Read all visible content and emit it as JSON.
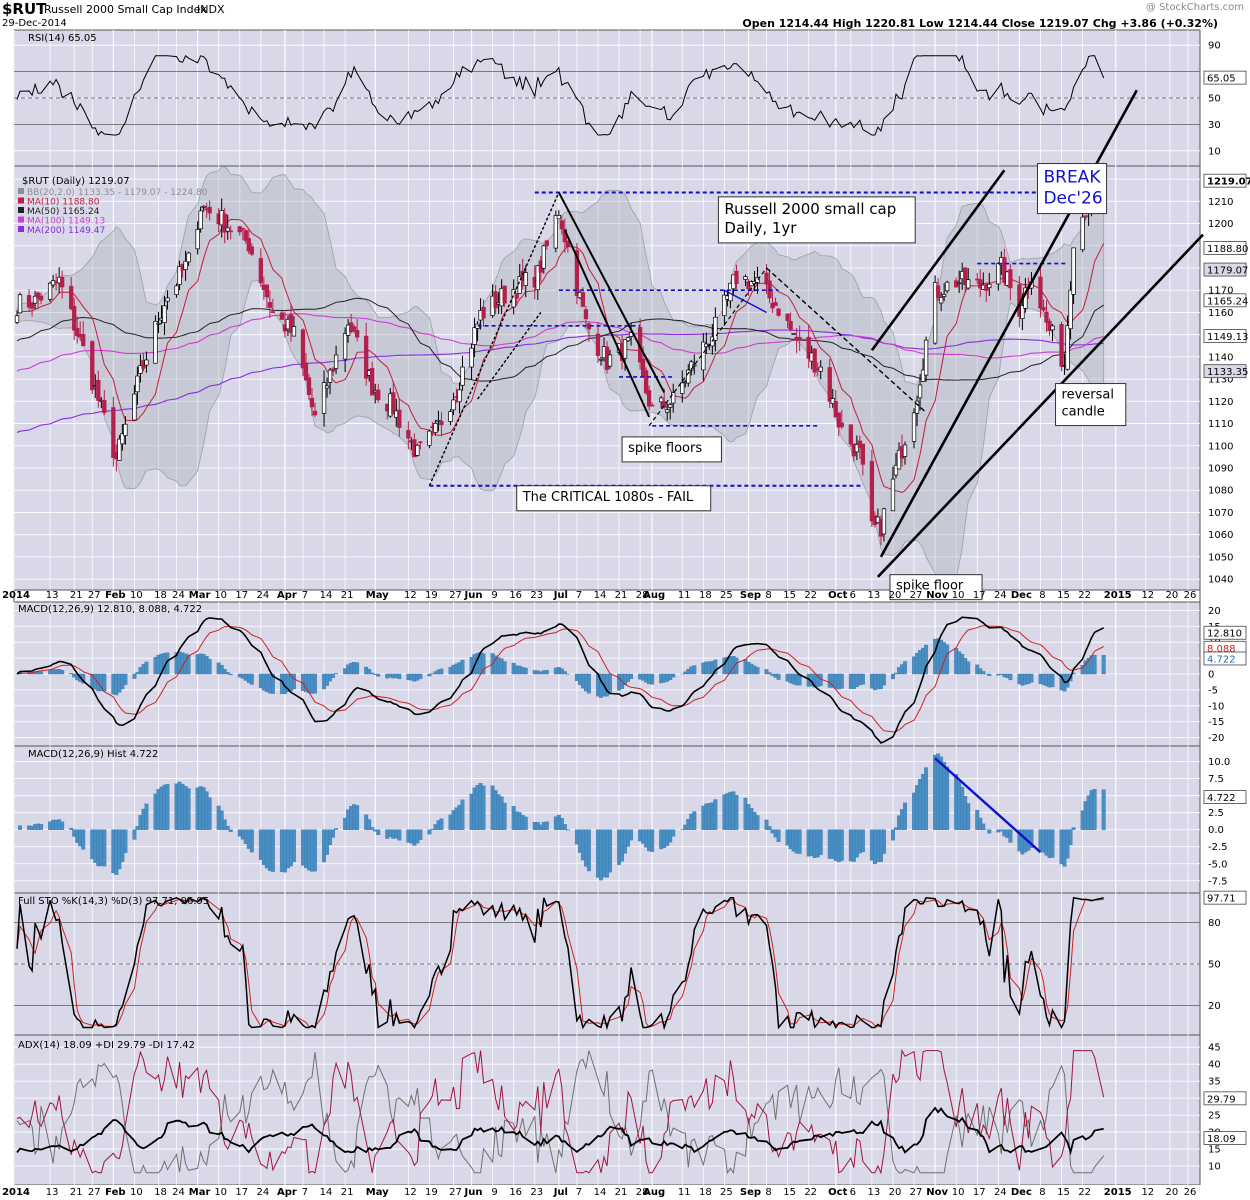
{
  "header": {
    "symbol": "$RUT",
    "name": "Russell 2000 Small Cap Index",
    "exchange": "INDX",
    "date": "29-Dec-2014",
    "watermark": "@ StockCharts.com",
    "ohlc_text": "Open 1214.44  High 1220.81  Low 1214.44  Close 1219.07  Chg +3.86 (+0.32%)"
  },
  "colors": {
    "panel_bg": "#d9d8e8",
    "grid": "#ffffff",
    "up_candle": "#ffffff",
    "down_candle": "#b4204c",
    "ma10": "#c41e3a",
    "ma50": "#222222",
    "ma100": "#d03cd0",
    "ma200": "#8a2be2",
    "bands": "#a9aeb6",
    "hist": "#4a8fc4",
    "annot_blue": "#1010d0"
  },
  "chart_data": [
    {
      "type": "line",
      "title": "RSI(14) 65.05",
      "series": [
        {
          "name": "RSI(14)",
          "last": 65.05
        }
      ],
      "y_ticks": [
        90,
        70,
        50,
        30,
        10
      ],
      "y_labels": [
        "90",
        "50",
        "30",
        "10"
      ],
      "ylim": [
        0,
        100
      ],
      "reference_lines": [
        70,
        50,
        30
      ],
      "last_label": "65.05"
    },
    {
      "type": "candlestick",
      "title": "$RUT (Daily) 1219.07",
      "legend": [
        {
          "text": "BB(20,2.0) 1133.35 - 1179.07 - 1224.80",
          "color": "#8b8f96"
        },
        {
          "text": "MA(10) 1188.80",
          "color": "#c41e3a"
        },
        {
          "text": "MA(50) 1165.24",
          "color": "#222222"
        },
        {
          "text": "MA(100) 1149.13",
          "color": "#d03cd0"
        },
        {
          "text": "MA(200) 1149.47",
          "color": "#8a2be2"
        }
      ],
      "y_ticks": [
        1040,
        1050,
        1060,
        1070,
        1080,
        1090,
        1100,
        1110,
        1120,
        1130,
        1140,
        1150,
        1160,
        1170,
        1180,
        1190,
        1200,
        1210,
        1220
      ],
      "y_labels": [
        "1040",
        "1050",
        "1060",
        "1070",
        "1080",
        "1090",
        "1100",
        "1110",
        "1120",
        "1130",
        "1140",
        "1150",
        "1160",
        "1170",
        "1180",
        "1190",
        "1200",
        "1210"
      ],
      "ylim": [
        1036,
        1225
      ],
      "right_labels": [
        {
          "text": "1219.07",
          "value": 1219.07,
          "bg": "#ffffff",
          "color": "#000000"
        },
        {
          "text": "1188.80",
          "value": 1188.8,
          "bg": "#ffffff",
          "color": "#000000"
        },
        {
          "text": "1179.07",
          "value": 1179.07,
          "bg": "#d9d8e8",
          "color": "#000000"
        },
        {
          "text": "1165.24",
          "value": 1165.24,
          "bg": "#ffffff",
          "color": "#000000"
        },
        {
          "text": "1149.13",
          "value": 1149.13,
          "bg": "#ffffff",
          "color": "#000000"
        },
        {
          "text": "1133.35",
          "value": 1133.35,
          "bg": "#d9d8e8",
          "color": "#000000"
        }
      ],
      "anchors": [
        [
          "2013-12-31",
          1163
        ],
        [
          "2014-01-08",
          1165
        ],
        [
          "2014-01-16",
          1174
        ],
        [
          "2014-01-24",
          1143
        ],
        [
          "2014-02-04",
          1094
        ],
        [
          "2014-02-12",
          1132
        ],
        [
          "2014-02-20",
          1165
        ],
        [
          "2014-02-28",
          1183
        ],
        [
          "2014-03-04",
          1208
        ],
        [
          "2014-03-10",
          1203
        ],
        [
          "2014-03-20",
          1191
        ],
        [
          "2014-03-28",
          1160
        ],
        [
          "2014-04-04",
          1150
        ],
        [
          "2014-04-11",
          1112
        ],
        [
          "2014-04-22",
          1156
        ],
        [
          "2014-04-30",
          1127
        ],
        [
          "2014-05-07",
          1117
        ],
        [
          "2014-05-15",
          1096
        ],
        [
          "2014-05-21",
          1106
        ],
        [
          "2014-05-28",
          1126
        ],
        [
          "2014-06-05",
          1159
        ],
        [
          "2014-06-13",
          1168
        ],
        [
          "2014-06-24",
          1177
        ],
        [
          "2014-07-01",
          1206
        ],
        [
          "2014-07-10",
          1155
        ],
        [
          "2014-07-17",
          1138
        ],
        [
          "2014-07-25",
          1146
        ],
        [
          "2014-08-01",
          1116
        ],
        [
          "2014-08-08",
          1120
        ],
        [
          "2014-08-15",
          1138
        ],
        [
          "2014-08-22",
          1153
        ],
        [
          "2014-08-29",
          1176
        ],
        [
          "2014-09-05",
          1173
        ],
        [
          "2014-09-12",
          1162
        ],
        [
          "2014-09-19",
          1145
        ],
        [
          "2014-09-26",
          1135
        ],
        [
          "2014-10-03",
          1107
        ],
        [
          "2014-10-09",
          1096
        ],
        [
          "2014-10-13",
          1062
        ],
        [
          "2014-10-16",
          1064
        ],
        [
          "2014-10-22",
          1094
        ],
        [
          "2014-10-28",
          1124
        ],
        [
          "2014-11-03",
          1169
        ],
        [
          "2014-11-10",
          1174
        ],
        [
          "2014-11-18",
          1172
        ],
        [
          "2014-11-25",
          1180
        ],
        [
          "2014-12-01",
          1162
        ],
        [
          "2014-12-05",
          1178
        ],
        [
          "2014-12-10",
          1155
        ],
        [
          "2014-12-16",
          1137
        ],
        [
          "2014-12-19",
          1194
        ],
        [
          "2014-12-23",
          1207
        ],
        [
          "2014-12-29",
          1219
        ]
      ],
      "annotations": [
        {
          "text": "BREAK",
          "text2": "Dec'26",
          "color": "#1010d0",
          "date": "2014-12-09",
          "value": 1227
        },
        {
          "text": "Russell 2000 small cap",
          "text2": "Daily, 1yr",
          "color": "#000000",
          "date": "2014-08-25",
          "value": 1212
        },
        {
          "text": "spike floors",
          "color": "#000000",
          "date": "2014-07-24",
          "value": 1104
        },
        {
          "text": "The CRITICAL 1080s - FAIL",
          "color": "#000000",
          "date": "2014-06-19",
          "value": 1082
        },
        {
          "text": "spike floor",
          "color": "#000000",
          "date": "2014-10-21",
          "value": 1042
        },
        {
          "text": "reversal",
          "text2": "candle",
          "color": "#000000",
          "date": "2014-12-15",
          "value": 1128
        }
      ]
    },
    {
      "type": "line",
      "title": "MACD(12,26,9) 12.810, 8.088, 4.722",
      "series": [
        {
          "name": "MACD(12,26,9)",
          "last": 12.81,
          "color": "#000000"
        },
        {
          "name": "Signal",
          "last": 8.088,
          "color": "#cc2222"
        },
        {
          "name": "Histogram",
          "last": 4.722,
          "color": "#4a8fc4"
        }
      ],
      "y_ticks": [
        20,
        15,
        10,
        5,
        0,
        -5,
        -10,
        -15,
        -20
      ],
      "y_labels": [
        "20",
        "15",
        "10",
        "5",
        "0",
        "-5",
        "-10",
        "-15",
        "-20"
      ],
      "ylim": [
        -22,
        22
      ],
      "right_labels": [
        {
          "text": "12.810",
          "value": 12.81,
          "bg": "#ffffff",
          "color": "#000000"
        },
        {
          "text": "8.088",
          "value": 8.088,
          "bg": "#ffffff",
          "color": "#cc2222"
        },
        {
          "text": "4.722",
          "value": 4.722,
          "bg": "#ffffff",
          "color": "#1f6fb5"
        }
      ]
    },
    {
      "type": "bar",
      "title": "MACD(12,26,9) Hist 4.722",
      "series": [
        {
          "name": "MACD Hist",
          "last": 4.722
        }
      ],
      "y_ticks": [
        10,
        7.5,
        5,
        2.5,
        0,
        -2.5,
        -5,
        -7.5
      ],
      "y_labels": [
        "10.0",
        "7.5",
        "5.0",
        "2.5",
        "0.0",
        "-2.5",
        "-5.0",
        "-7.5"
      ],
      "ylim": [
        -9,
        12
      ],
      "last_label": "4.722"
    },
    {
      "type": "line",
      "title": "Full STO %K(14,3) %D(3) 97.71, 96.95",
      "series": [
        {
          "name": "%K(14,3)",
          "last": 97.71,
          "color": "#000000"
        },
        {
          "name": "%D(3)",
          "last": 96.95,
          "color": "#cc2222"
        }
      ],
      "y_ticks": [
        80,
        50,
        20
      ],
      "y_labels": [
        "80",
        "50",
        "20"
      ],
      "ylim": [
        0,
        100
      ],
      "reference_lines": [
        80,
        50,
        20
      ],
      "last_label": "97.71"
    },
    {
      "type": "line",
      "title": "ADX(14) 18.09 +DI 29.79 -DI 17.42",
      "series": [
        {
          "name": "ADX(14)",
          "last": 18.09,
          "color": "#000000"
        },
        {
          "name": "+DI",
          "last": 29.79,
          "color": "#a0143c"
        },
        {
          "name": "-DI",
          "last": 17.42,
          "color": "#707070"
        }
      ],
      "y_ticks": [
        45,
        40,
        35,
        30,
        25,
        20,
        15,
        10
      ],
      "y_labels": [
        "45",
        "40",
        "35",
        "30",
        "25",
        "20",
        "15",
        "10"
      ],
      "ylim": [
        5,
        48
      ],
      "right_labels": [
        {
          "text": "29.79",
          "value": 29.79,
          "bg": "#ffffff",
          "color": "#000000"
        },
        {
          "text": "18.09",
          "value": 18.09,
          "bg": "#ffffff",
          "color": "#000000"
        }
      ]
    }
  ],
  "x_axis": {
    "ticks": [
      {
        "date": "2014-01-01",
        "label": "2014",
        "bold": true
      },
      {
        "date": "2014-01-13",
        "label": "13"
      },
      {
        "date": "2014-01-21",
        "label": "21"
      },
      {
        "date": "2014-01-27",
        "label": "27"
      },
      {
        "date": "2014-02-03",
        "label": "Feb",
        "bold": true
      },
      {
        "date": "2014-02-10",
        "label": "10"
      },
      {
        "date": "2014-02-18",
        "label": "18"
      },
      {
        "date": "2014-02-24",
        "label": "24"
      },
      {
        "date": "2014-03-03",
        "label": "Mar",
        "bold": true
      },
      {
        "date": "2014-03-10",
        "label": "10"
      },
      {
        "date": "2014-03-17",
        "label": "17"
      },
      {
        "date": "2014-03-24",
        "label": "24"
      },
      {
        "date": "2014-04-01",
        "label": "Apr",
        "bold": true
      },
      {
        "date": "2014-04-07",
        "label": "7"
      },
      {
        "date": "2014-04-14",
        "label": "14"
      },
      {
        "date": "2014-04-21",
        "label": "21"
      },
      {
        "date": "2014-05-01",
        "label": "May",
        "bold": true
      },
      {
        "date": "2014-05-12",
        "label": "12"
      },
      {
        "date": "2014-05-19",
        "label": "19"
      },
      {
        "date": "2014-05-27",
        "label": "27"
      },
      {
        "date": "2014-06-02",
        "label": "Jun",
        "bold": true
      },
      {
        "date": "2014-06-09",
        "label": "9"
      },
      {
        "date": "2014-06-16",
        "label": "16"
      },
      {
        "date": "2014-06-23",
        "label": "23"
      },
      {
        "date": "2014-07-01",
        "label": "Jul",
        "bold": true
      },
      {
        "date": "2014-07-07",
        "label": "7"
      },
      {
        "date": "2014-07-14",
        "label": "14"
      },
      {
        "date": "2014-07-21",
        "label": "21"
      },
      {
        "date": "2014-07-28",
        "label": "28"
      },
      {
        "date": "2014-08-01",
        "label": "Aug",
        "bold": true
      },
      {
        "date": "2014-08-11",
        "label": "11"
      },
      {
        "date": "2014-08-18",
        "label": "18"
      },
      {
        "date": "2014-08-25",
        "label": "25"
      },
      {
        "date": "2014-09-02",
        "label": "Sep",
        "bold": true
      },
      {
        "date": "2014-09-08",
        "label": "8"
      },
      {
        "date": "2014-09-15",
        "label": "15"
      },
      {
        "date": "2014-09-22",
        "label": "22"
      },
      {
        "date": "2014-10-01",
        "label": "Oct",
        "bold": true
      },
      {
        "date": "2014-10-06",
        "label": "6"
      },
      {
        "date": "2014-10-13",
        "label": "13"
      },
      {
        "date": "2014-10-20",
        "label": "20"
      },
      {
        "date": "2014-10-27",
        "label": "27"
      },
      {
        "date": "2014-11-03",
        "label": "Nov",
        "bold": true
      },
      {
        "date": "2014-11-10",
        "label": "10"
      },
      {
        "date": "2014-11-17",
        "label": "17"
      },
      {
        "date": "2014-11-24",
        "label": "24"
      },
      {
        "date": "2014-12-01",
        "label": "Dec",
        "bold": true
      },
      {
        "date": "2014-12-08",
        "label": "8"
      },
      {
        "date": "2014-12-15",
        "label": "15"
      },
      {
        "date": "2014-12-22",
        "label": "22"
      },
      {
        "date": "2015-01-02",
        "label": "2015",
        "bold": true
      },
      {
        "date": "2015-01-12",
        "label": "12"
      },
      {
        "date": "2015-01-20",
        "label": "20"
      },
      {
        "date": "2015-01-26",
        "label": "26"
      }
    ]
  }
}
